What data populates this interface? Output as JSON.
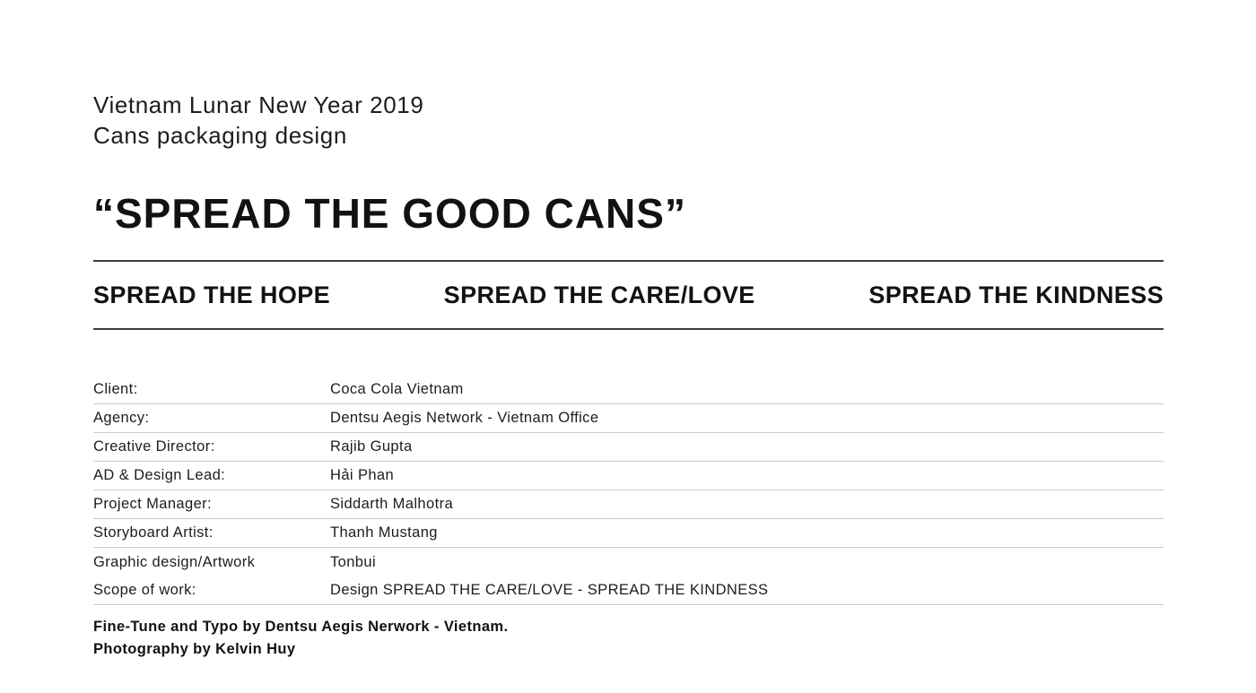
{
  "page": {
    "background": "#ffffff",
    "text_color": "#1d1d1b",
    "rule_color": "#3c3c3b",
    "divider_color": "#cccccc"
  },
  "header": {
    "project_line1": "Vietnam Lunar New Year 2019",
    "project_line2": "Cans packaging design",
    "headline": "“SPREAD THE GOOD CANS”"
  },
  "taglines": [
    {
      "label": "SPREAD THE HOPE"
    },
    {
      "label": "SPREAD THE CARE/LOVE"
    },
    {
      "label": "SPREAD THE KINDNESS"
    }
  ],
  "credits": {
    "rows": [
      {
        "label": "Client:",
        "value": "Coca Cola Vietnam"
      },
      {
        "label": "Agency:",
        "value": "Dentsu Aegis Network - Vietnam Office"
      },
      {
        "label": "Creative Director:",
        "value": "Rajib Gupta"
      },
      {
        "label": "AD & Design Lead:",
        "value": "Hải Phan"
      },
      {
        "label": "Project Manager:",
        "value": "Siddarth Malhotra"
      },
      {
        "label": "Storyboard Artist:",
        "value": "Thanh Mustang"
      },
      {
        "label": "Graphic design/Artwork",
        "value": "Tonbui"
      },
      {
        "label": "Scope of work:",
        "value": "Design SPREAD THE CARE/LOVE - SPREAD THE KINDNESS"
      }
    ]
  },
  "footer": {
    "line1": "Fine-Tune and Typo by Dentsu Aegis Nerwork - Vietnam.",
    "line2": "Photography by Kelvin Huy"
  }
}
